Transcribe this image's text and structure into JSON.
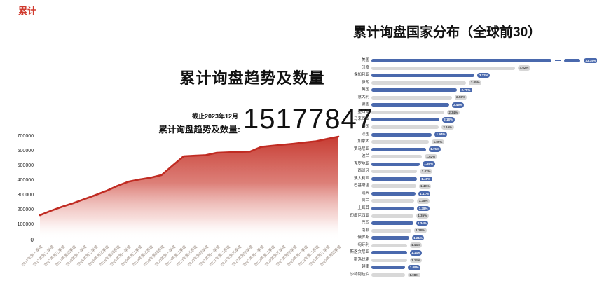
{
  "ui": {
    "corner_mark": "累计",
    "trend_chart": {
      "title": "累计询盘趋势及数量",
      "as_of": "截止2023年12月",
      "total_label": "累计询盘趋势及数量:",
      "total_value": "15177847"
    },
    "country_chart": {
      "title": "累计询盘国家分布（全球前30）"
    }
  },
  "colors": {
    "area_line": "#c02b22",
    "area_fill_top": "#c5362c",
    "bar_blue": "#4a69ad",
    "bar_grey": "#d8d8d8",
    "accent_red": "#d03a2e"
  },
  "chart_data": [
    {
      "type": "area",
      "title": "累计询盘趋势及数量",
      "xlabel": "",
      "ylabel": "",
      "ylim": [
        0,
        700000
      ],
      "yticks": [
        0,
        100000,
        200000,
        300000,
        400000,
        500000,
        600000,
        700000
      ],
      "grid": false,
      "legend": false,
      "annotation": {
        "as_of": "截止2023年12月",
        "label": "累计询盘趋势及数量:",
        "value": 15177847
      },
      "x": [
        "2017年第一季度",
        "2017年第二季度",
        "2017年第三季度",
        "2017年第四季度",
        "2018年第一季度",
        "2018年第二季度",
        "2018年第三季度",
        "2018年第四季度",
        "2019年第一季度",
        "2019年第二季度",
        "2019年第三季度",
        "2019年第四季度",
        "2020年第一季度",
        "2020年第二季度",
        "2020年第三季度",
        "2020年第四季度",
        "2021年第一季度",
        "2021年第二季度",
        "2021年第三季度",
        "2021年第四季度",
        "2022年第一季度",
        "2022年第二季度",
        "2022年第三季度",
        "2022年第四季度",
        "2023年第一季度",
        "2023年第二季度",
        "2023年第三季度",
        "2023年第四季度"
      ],
      "values": [
        165000,
        195000,
        222000,
        246000,
        274000,
        301000,
        330000,
        364000,
        393000,
        408000,
        420000,
        438000,
        503000,
        566000,
        570000,
        574000,
        590000,
        593000,
        596000,
        598000,
        630000,
        638000,
        645000,
        652000,
        661000,
        669000,
        685000,
        700000
      ]
    },
    {
      "type": "bar",
      "orientation": "horizontal",
      "title": "累计询盘国家分布（全球前30）",
      "unit": "%",
      "broken_bar_index": 0,
      "bar_color_alternation": [
        "#4a69ad",
        "#d8d8d8"
      ],
      "categories": [
        "美国",
        "印度",
        "保加利亚",
        "伊朗",
        "英国",
        "意大利",
        "德国",
        "墨西哥",
        "马来西亚",
        "泰国",
        "法国",
        "加拿大",
        "罗马尼亚",
        "波兰",
        "克罗地亚",
        "西班牙",
        "澳大利亚",
        "巴基斯坦",
        "瑞典",
        "荷兰",
        "土耳其",
        "印度尼西亚",
        "巴西",
        "南非",
        "俄罗斯",
        "匈牙利",
        "斯洛文尼亚",
        "斯洛伐克",
        "越南",
        "沙特阿拉伯"
      ],
      "values": [
        33.19,
        4.62,
        3.32,
        3.05,
        2.75,
        2.58,
        2.49,
        2.34,
        2.18,
        2.16,
        1.94,
        1.85,
        1.75,
        1.62,
        1.55,
        1.47,
        1.46,
        1.43,
        1.41,
        1.38,
        1.38,
        1.35,
        1.34,
        1.28,
        1.21,
        1.14,
        1.14,
        1.14,
        1.09,
        1.08
      ]
    }
  ]
}
